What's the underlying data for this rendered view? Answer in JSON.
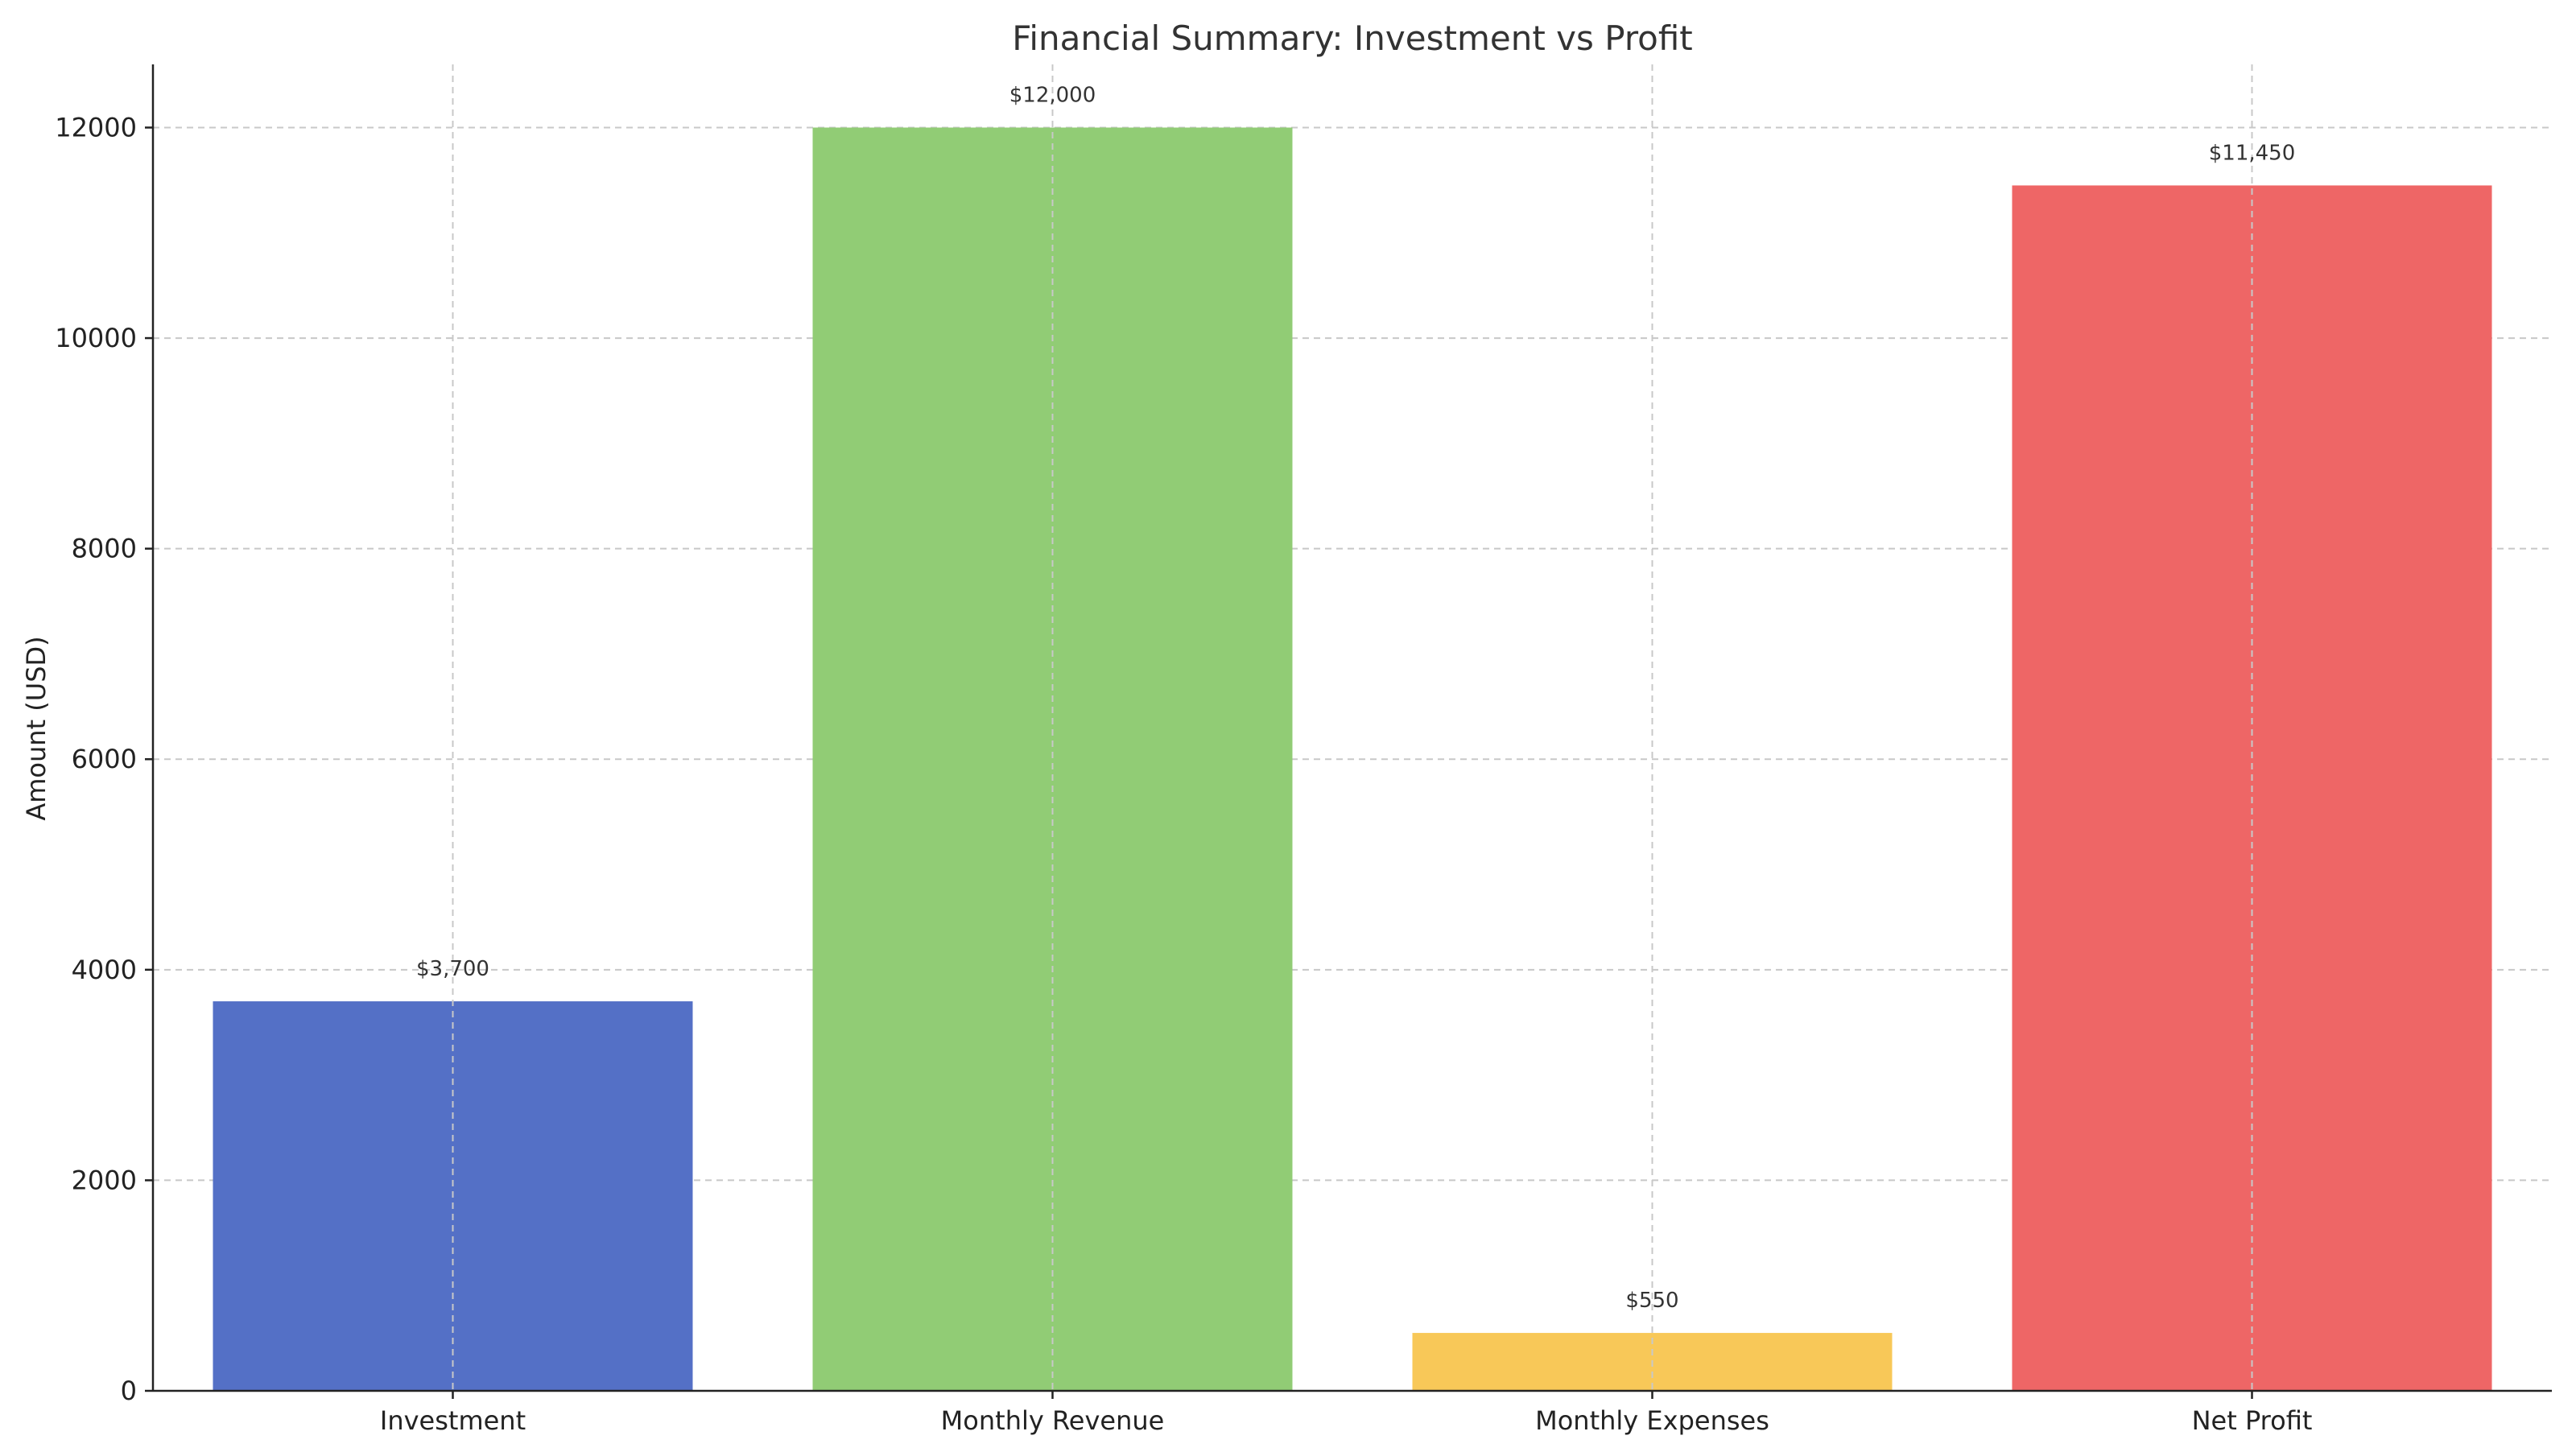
{
  "chart_data": {
    "type": "bar",
    "title": "Financial Summary: Investment vs Profit",
    "xlabel": "",
    "ylabel": "Amount (USD)",
    "categories": [
      "Investment",
      "Monthly Revenue",
      "Monthly Expenses",
      "Net Profit"
    ],
    "values": [
      3700,
      12000,
      550,
      11450
    ],
    "data_labels": [
      "$3,700",
      "$12,000",
      "$550",
      "$11,450"
    ],
    "colors": [
      "#5470c6",
      "#91cc75",
      "#f8c858",
      "#ee6666"
    ],
    "ylim": [
      0,
      12600
    ],
    "yticks": [
      0,
      2000,
      4000,
      6000,
      8000,
      10000,
      12000
    ],
    "ytick_labels": [
      "0",
      "2000",
      "4000",
      "6000",
      "8000",
      "10000",
      "12000"
    ],
    "grid": true,
    "legend": "none"
  }
}
